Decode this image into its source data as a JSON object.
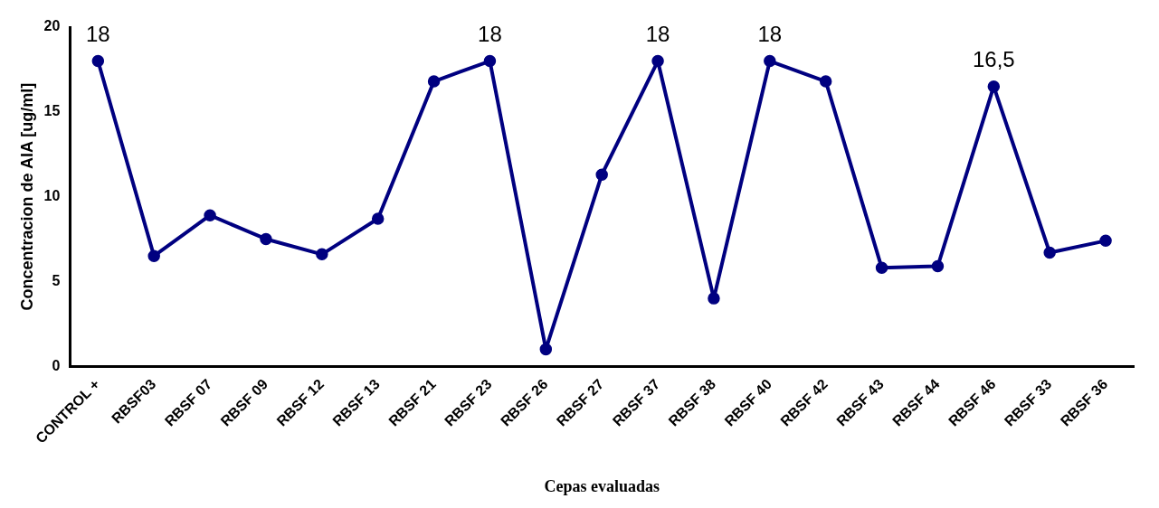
{
  "chart_data": {
    "type": "line",
    "xlabel": "Cepas evaluadas",
    "ylabel": "Concentracion de AIA [ug/ml]",
    "categories": [
      "CONTROL +",
      "RBSF03",
      "RBSF 07",
      "RBSF 09",
      "RBSF 12",
      "RBSF 13",
      "RBSF 21",
      "RBSF 23",
      "RBSF 26",
      "RBSF 27",
      "RBSF 37",
      "RBSF 38",
      "RBSF 40",
      "RBSF 42",
      "RBSF 43",
      "RBSF 44",
      "RBSF 46",
      "RBSF 33",
      "RBSF 36"
    ],
    "series": [
      {
        "color": "#000080",
        "values": [
          18,
          6.5,
          8.9,
          7.5,
          6.6,
          8.7,
          16.8,
          18,
          1,
          11.3,
          18,
          4,
          18,
          16.8,
          5.8,
          5.9,
          16.5,
          6.7,
          7.4
        ],
        "value_labels": [
          "18",
          null,
          null,
          null,
          null,
          null,
          null,
          "18",
          null,
          null,
          "18",
          null,
          "18",
          null,
          null,
          null,
          "16,5",
          null,
          null
        ]
      }
    ],
    "ylim": [
      0,
      20
    ],
    "yticks": [
      0,
      5,
      10,
      15,
      20
    ],
    "grid": false,
    "legend": false,
    "marker": "circle",
    "line_style": "solid"
  }
}
